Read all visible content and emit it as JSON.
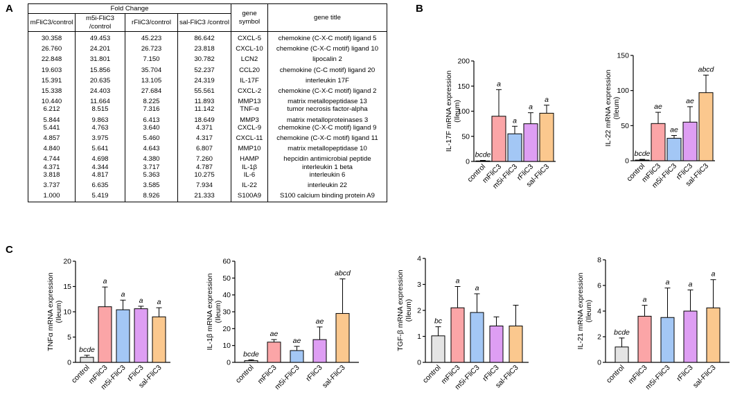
{
  "panel_labels": {
    "a": "A",
    "b": "B",
    "c": "C"
  },
  "table": {
    "header_group": "Fold Change",
    "columns": [
      "mFliC3/control",
      "m5i-FliC3 /control",
      "rFliC3/control",
      "sal-FliC3 /control",
      "gene symbol",
      "gene title"
    ],
    "rows": [
      [
        "30.358",
        "49.453",
        "45.223",
        "86.642",
        "CXCL-5",
        "chemokine (C-X-C motif) ligand 5"
      ],
      [
        "26.760",
        "24.201",
        "26.723",
        "23.818",
        "CXCL-10",
        "chemokine (C-X-C motif) ligand 10"
      ],
      [
        "22.848",
        "31.801",
        "7.150",
        "30.782",
        "LCN2",
        "lipocalin 2"
      ],
      [
        "19.603",
        "15.856",
        "35.704",
        "52.237",
        "CCL20",
        "chemokine (C-C motif) ligand 20"
      ],
      [
        "15.391",
        "20.635",
        "13.105",
        "24.319",
        "IL-17F",
        "interleukin 17F"
      ],
      [
        "15.338",
        "24.403",
        "27.684",
        "55.561",
        "CXCL-2",
        "chemokine (C-X-C motif) ligand 2"
      ],
      [
        "10.440",
        "11.664",
        "8.225",
        "11.893",
        "MMP13",
        "matrix metallopeptidase 13"
      ],
      [
        "6.212",
        "8.515",
        "7.316",
        "11.142",
        "TNF-α",
        "tumor necrosis factor-alpha"
      ],
      [
        "5.844",
        "9.863",
        "6.413",
        "18.649",
        "MMP3",
        "matrix metalloproteinases 3"
      ],
      [
        "5.441",
        "4.763",
        "3.640",
        "4.371",
        "CXCL-9",
        "chemokine (C-X-C motif) ligand 9"
      ],
      [
        "4.857",
        "3.975",
        "5.460",
        "4.317",
        "CXCL-11",
        "chemokine (C-X-C motif) ligand 11"
      ],
      [
        "4.840",
        "5.641",
        "4.643",
        "6.807",
        "MMP10",
        "matrix metallopeptidase 10"
      ],
      [
        "4.744",
        "4.698",
        "4.380",
        "7.260",
        "HAMP",
        "hepcidin antimicrobial peptide"
      ],
      [
        "4.371",
        "4.344",
        "3.717",
        "4.787",
        "IL-1β",
        "interleukin 1 beta"
      ],
      [
        "3.818",
        "4.817",
        "5.363",
        "10.275",
        "IL-6",
        "interleukin 6"
      ],
      [
        "3.737",
        "6.635",
        "3.585",
        "7.934",
        "IL-22",
        "interleukin 22"
      ],
      [
        "1.000",
        "5.419",
        "8.926",
        "21.333",
        "S100A9",
        "S100 calcium binding protein A9"
      ]
    ]
  },
  "colors": {
    "control": "#e4e4e4",
    "mFliC3": "#fba5a7",
    "m5i-FliC3": "#a3c7f5",
    "rFliC3": "#de9ef3",
    "sal-FliC3": "#fbc88e"
  },
  "chart_data": [
    {
      "id": "il17f",
      "type": "bar",
      "ylabel": "IL-17F mRNA expression (Ileum)",
      "ylim": [
        0,
        200
      ],
      "yticks": [
        0,
        50,
        100,
        150,
        200
      ],
      "categories": [
        "control",
        "mFliC3",
        "m5i-FliC3",
        "rFliC3",
        "sal-FliC3"
      ],
      "values": [
        1,
        90,
        55,
        75,
        96
      ],
      "errors": [
        1,
        53,
        15,
        22,
        16
      ],
      "annotations": [
        "bcde",
        "a",
        "a",
        "a",
        "a"
      ]
    },
    {
      "id": "il22",
      "type": "bar",
      "ylabel": "IL-22 mRNA expression (Ileum)",
      "ylim": [
        0,
        150
      ],
      "yticks": [
        0,
        50,
        100,
        150
      ],
      "categories": [
        "control",
        "mFliC3",
        "m5i-FliC3",
        "rFliC3",
        "sal-FliC3"
      ],
      "values": [
        1,
        53,
        32,
        55,
        97
      ],
      "errors": [
        1,
        16,
        4,
        22,
        25
      ],
      "annotations": [
        "bcde",
        "ae",
        "ae",
        "ae",
        "abcd"
      ]
    },
    {
      "id": "tnfa",
      "type": "bar",
      "ylabel": "TNFα mRNA expression (Ileum)",
      "ylim": [
        0,
        20
      ],
      "yticks": [
        0,
        5,
        10,
        15,
        20
      ],
      "categories": [
        "control",
        "mFliC3",
        "m5i-FliC3",
        "rFliC3",
        "sal-FliC3"
      ],
      "values": [
        1,
        11,
        10.4,
        10.6,
        9
      ],
      "errors": [
        0.4,
        3.9,
        1.9,
        0.5,
        1.8
      ],
      "annotations": [
        "bcde",
        "a",
        "a",
        "a",
        "a"
      ]
    },
    {
      "id": "il1b",
      "type": "bar",
      "ylabel": "IL-1β mRNA expression (Ileum)",
      "ylim": [
        0,
        60
      ],
      "yticks": [
        0,
        10,
        20,
        30,
        40,
        50,
        60
      ],
      "categories": [
        "control",
        "mFliC3",
        "m5i-FliC3",
        "rFliC3",
        "sal-FliC3"
      ],
      "values": [
        1,
        12,
        7,
        13.5,
        29
      ],
      "errors": [
        0.5,
        1.5,
        2.5,
        7.5,
        20.5
      ],
      "annotations": [
        "bcde",
        "ae",
        "ae",
        "ae",
        "abcd"
      ]
    },
    {
      "id": "tgfb",
      "type": "bar",
      "ylabel": "TGF-β mRNA expression (Ileum)",
      "ylim": [
        0,
        4
      ],
      "yticks": [
        0,
        1,
        2,
        3,
        4
      ],
      "categories": [
        "control",
        "mFliC3",
        "m5i-FliC3",
        "rFliC3",
        "sal-FliC3"
      ],
      "values": [
        1.02,
        2.1,
        1.92,
        1.4,
        1.4
      ],
      "errors": [
        0.35,
        0.82,
        0.72,
        0.35,
        0.8
      ],
      "annotations": [
        "bc",
        "a",
        "a",
        "",
        ""
      ]
    },
    {
      "id": "il21",
      "type": "bar",
      "ylabel": "IL-21 mRNA expression (Ileum)",
      "ylim": [
        0,
        8
      ],
      "yticks": [
        0,
        2,
        4,
        6,
        8
      ],
      "categories": [
        "control",
        "mFliC3",
        "m5i-FliC3",
        "rFliC3",
        "sal-FliC3"
      ],
      "values": [
        1.2,
        3.6,
        3.5,
        4.0,
        4.25
      ],
      "errors": [
        0.7,
        0.85,
        2.3,
        1.65,
        2.2
      ],
      "annotations": [
        "bcde",
        "a",
        "a",
        "a",
        "a"
      ]
    }
  ]
}
